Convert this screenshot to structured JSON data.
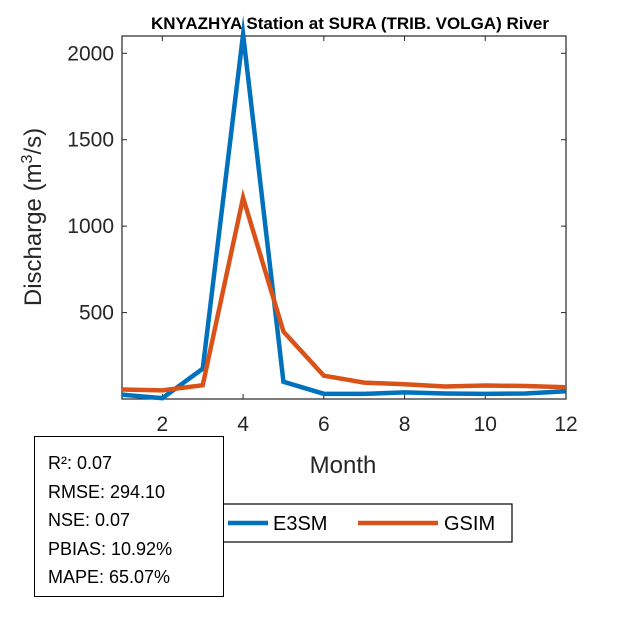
{
  "colors": {
    "E3SM": "#0072BD",
    "GSIM": "#D95319",
    "axis": "#262626"
  },
  "chart_data": {
    "type": "line",
    "title": "KNYAZHYA  Station at  SURA (TRIB. VOLGA)  River",
    "xlabel": "Month",
    "ylabel": "Discharge (m³/s)",
    "ylabel_base": "Discharge (m",
    "ylabel_sup": "3",
    "ylabel_tail": "/s)",
    "x": [
      1,
      2,
      3,
      4,
      5,
      6,
      7,
      8,
      9,
      10,
      11,
      12
    ],
    "xlim": [
      1,
      12
    ],
    "ylim": [
      0,
      2100
    ],
    "xticks": [
      2,
      4,
      6,
      8,
      10,
      12
    ],
    "yticks": [
      500,
      1000,
      1500,
      2000
    ],
    "series": [
      {
        "name": "E3SM",
        "values": [
          25,
          5,
          175,
          2110,
          100,
          30,
          30,
          38,
          32,
          30,
          32,
          45
        ]
      },
      {
        "name": "GSIM",
        "values": [
          55,
          50,
          80,
          1165,
          390,
          135,
          95,
          85,
          72,
          78,
          75,
          68
        ]
      }
    ],
    "legend": {
      "placement": "bottom-center",
      "orientation": "horizontal",
      "entries": [
        "E3SM",
        "GSIM"
      ]
    },
    "grid": false
  },
  "stats": {
    "lines": [
      "R²: 0.07",
      "RMSE: 294.10",
      "NSE: 0.07",
      "PBIAS: 10.92%",
      "MAPE: 65.07%"
    ]
  }
}
